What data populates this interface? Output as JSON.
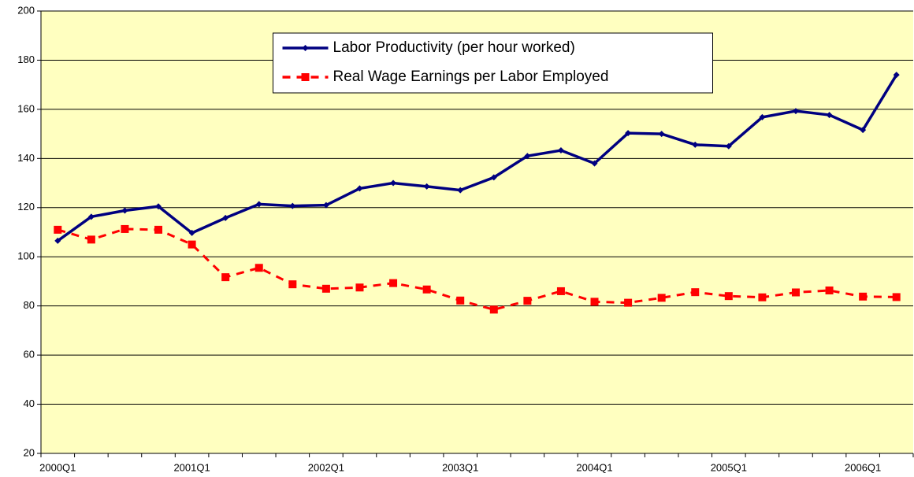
{
  "chart_data": {
    "type": "line",
    "categories": [
      "2000Q1",
      null,
      null,
      null,
      "2001Q1",
      null,
      null,
      null,
      "2002Q1",
      null,
      null,
      null,
      "2003Q1",
      null,
      null,
      null,
      "2004Q1",
      null,
      null,
      null,
      "2005Q1",
      null,
      null,
      null,
      "2006Q1",
      null
    ],
    "series": [
      {
        "name": "Labor Productivity (per hour worked)",
        "color": "#000080",
        "dashed": false,
        "marker": "diamond",
        "values": [
          106.5,
          116.3,
          118.8,
          120.5,
          109.7,
          115.8,
          121.4,
          120.7,
          121,
          127.8,
          130,
          128.6,
          127.1,
          132.3,
          141,
          143.3,
          138,
          150.3,
          150,
          145.6,
          145,
          156.8,
          159.3,
          157.7,
          151.6,
          174
        ]
      },
      {
        "name": "Real Wage Earnings per Labor Employed",
        "color": "#ff0000",
        "dashed": true,
        "marker": "square",
        "values": [
          111,
          107,
          111.3,
          111,
          105,
          91.7,
          95.5,
          88.8,
          87,
          87.5,
          89.3,
          86.7,
          82.2,
          78.5,
          82.1,
          86,
          81.7,
          81.3,
          83.3,
          85.6,
          84,
          83.5,
          85.5,
          86.3,
          83.8,
          83.6
        ]
      }
    ],
    "ylim": [
      20,
      200
    ],
    "yticks": [
      20,
      40,
      60,
      80,
      100,
      120,
      140,
      160,
      180,
      200
    ],
    "grid": true,
    "legend": "top",
    "background": "#ffffc0"
  }
}
